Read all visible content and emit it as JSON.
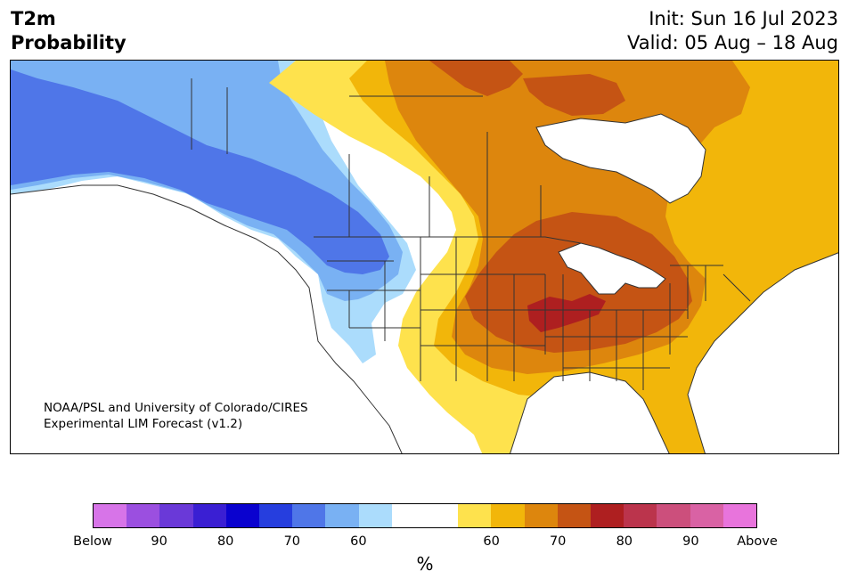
{
  "title": {
    "line1": "T2m",
    "line2": "Probability"
  },
  "init": "Init: Sun 16 Jul 2023",
  "valid": "Valid: 05 Aug – 18 Aug",
  "credit": {
    "line1": "NOAA/PSL and University of Colorado/CIRES",
    "line2": "Experimental LIM Forecast (v1.2)"
  },
  "colorbar": {
    "unit_label": "%",
    "colors": [
      "#d774e8",
      "#9b4fe0",
      "#6a39d8",
      "#3a1fd3",
      "#0a02cf",
      "#263ede",
      "#4f76e8",
      "#79b1f3",
      "#abdcfc",
      "#ffffff",
      "#ffffff",
      "#fee24d",
      "#f2b60a",
      "#dd860d",
      "#c55414",
      "#ae1f20",
      "#bb344c",
      "#cc4f7c",
      "#d962a4",
      "#e874dc"
    ],
    "ticks": [
      {
        "label": "Below",
        "bin": 0
      },
      {
        "label": "90",
        "bin": 2
      },
      {
        "label": "80",
        "bin": 4
      },
      {
        "label": "70",
        "bin": 6
      },
      {
        "label": "60",
        "bin": 8
      },
      {
        "label": "60",
        "bin": 12
      },
      {
        "label": "70",
        "bin": 14
      },
      {
        "label": "80",
        "bin": 16
      },
      {
        "label": "90",
        "bin": 18
      },
      {
        "label": "Above",
        "bin": 20
      }
    ]
  },
  "map_colors": {
    "blue_60": "#abdcfc",
    "blue_70": "#79b1f3",
    "blue_80": "#4f76e8",
    "orange_60": "#fee24d",
    "orange_70": "#f2b60a",
    "orange_80": "#dd860d",
    "orange_90": "#c55414",
    "red_max": "#ae1f20",
    "water": "#ffffff",
    "boundary": "#333333"
  }
}
